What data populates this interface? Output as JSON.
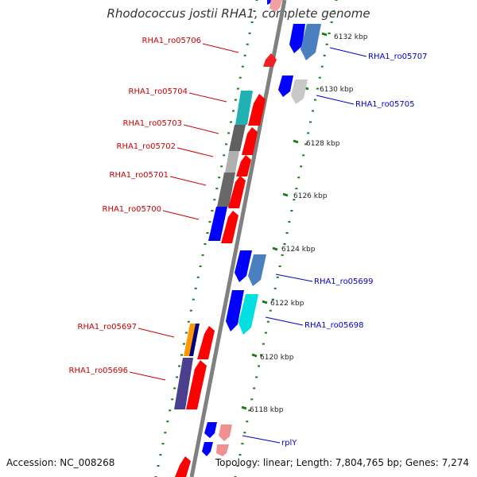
{
  "title": "Rhodococcus jostii RHA1, complete genome",
  "accession": "Accession: NC_008268",
  "summary": "Topology: linear; Length: 7,804,765 bp; Genes: 7,274",
  "ticks": [
    "6118 kbp",
    "6120 kbp",
    "6122 kbp",
    "6124 kbp",
    "6126 kbp",
    "6128 kbp",
    "6130 kbp",
    "6132 kbp"
  ],
  "labels_left": [
    "RHA1_ro05706",
    "RHA1_ro05704",
    "RHA1_ro05703",
    "RHA1_ro05702",
    "RHA1_ro05701",
    "RHA1_ro05700",
    "RHA1_ro05697",
    "RHA1_ro05696"
  ],
  "labels_right": [
    "RHA1_ro05707",
    "RHA1_ro05705",
    "RHA1_ro05699",
    "RHA1_ro05698",
    "rplY"
  ],
  "colors": {
    "axis": "#808080",
    "left_label": "#cc0000",
    "right_label": "#0000cc",
    "tick": "#1a7a1a",
    "cds_forward": "#ff0000",
    "cds_reverse": "#0000ff"
  }
}
